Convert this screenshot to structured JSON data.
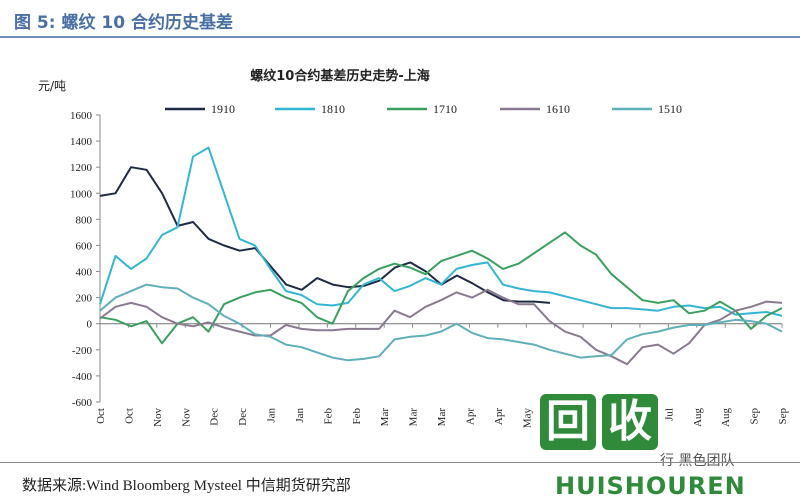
{
  "figure": {
    "title": "图 5:  螺纹 10 合约历史基差",
    "source": "数据来源:Wind Bloomberg Mysteel 中信期货研究部"
  },
  "watermark": {
    "tile1": "回",
    "tile2": "收",
    "latin": "HUISHOUREN",
    "side": "行  黑色团队"
  },
  "chart_data": {
    "type": "line",
    "title": "螺纹10合约基差历史走势-上海",
    "ylabel": "元/吨",
    "ylim": [
      -600,
      1600
    ],
    "yticks": [
      -600,
      -400,
      -200,
      0,
      200,
      400,
      600,
      800,
      1000,
      1200,
      1400,
      1600
    ],
    "x_labels": [
      "Oct",
      "Oct",
      "Nov",
      "Nov",
      "Dec",
      "Dec",
      "Jan",
      "Jan",
      "Feb",
      "Feb",
      "Mar",
      "Mar",
      "Mar",
      "Apr",
      "Apr",
      "May",
      "May",
      "Jun",
      "Jun",
      "Jul",
      "Jul",
      "Aug",
      "Aug",
      "Sep",
      "Sep"
    ],
    "legend_position": "top",
    "series": [
      {
        "name": "1910",
        "color": "#1f2a44",
        "values": [
          980,
          1000,
          1200,
          1180,
          1000,
          750,
          780,
          650,
          600,
          560,
          580,
          440,
          300,
          260,
          350,
          300,
          280,
          290,
          330,
          430,
          470,
          400,
          300,
          370,
          310,
          240,
          180,
          170,
          170,
          160
        ]
      },
      {
        "name": "1810",
        "color": "#33b5d4",
        "values": [
          150,
          520,
          420,
          500,
          680,
          740,
          1280,
          1350,
          1000,
          650,
          600,
          420,
          250,
          220,
          150,
          140,
          160,
          300,
          350,
          250,
          290,
          350,
          300,
          420,
          450,
          470,
          300,
          270,
          250,
          240,
          210,
          180,
          150,
          120,
          120,
          110,
          100,
          130,
          140,
          120,
          130,
          70,
          80,
          90,
          60
        ]
      },
      {
        "name": "1710",
        "color": "#3aa060",
        "values": [
          50,
          30,
          -20,
          20,
          -150,
          0,
          50,
          -60,
          150,
          200,
          240,
          260,
          200,
          160,
          50,
          0,
          250,
          350,
          420,
          460,
          430,
          380,
          480,
          520,
          560,
          500,
          420,
          460,
          540,
          620,
          700,
          600,
          530,
          380,
          280,
          180,
          160,
          180,
          80,
          100,
          170,
          100,
          -40,
          60,
          120
        ]
      },
      {
        "name": "1610",
        "color": "#8a7a90",
        "values": [
          40,
          130,
          160,
          130,
          50,
          0,
          -20,
          10,
          -30,
          -60,
          -90,
          -90,
          -10,
          -40,
          -50,
          -50,
          -40,
          -40,
          -40,
          100,
          50,
          130,
          180,
          240,
          200,
          260,
          200,
          150,
          150,
          20,
          -60,
          -100,
          -200,
          -250,
          -310,
          -180,
          -160,
          -230,
          -150,
          -10,
          30,
          100,
          130,
          170,
          160
        ]
      },
      {
        "name": "1510",
        "color": "#5fb0b8",
        "values": [
          100,
          200,
          250,
          300,
          280,
          270,
          200,
          150,
          60,
          0,
          -80,
          -100,
          -160,
          -180,
          -220,
          -260,
          -280,
          -270,
          -250,
          -120,
          -100,
          -90,
          -60,
          0,
          -70,
          -110,
          -120,
          -140,
          -160,
          -200,
          -230,
          -260,
          -250,
          -240,
          -120,
          -80,
          -60,
          -30,
          -10,
          -10,
          10,
          30,
          20,
          0,
          -60
        ]
      }
    ]
  }
}
